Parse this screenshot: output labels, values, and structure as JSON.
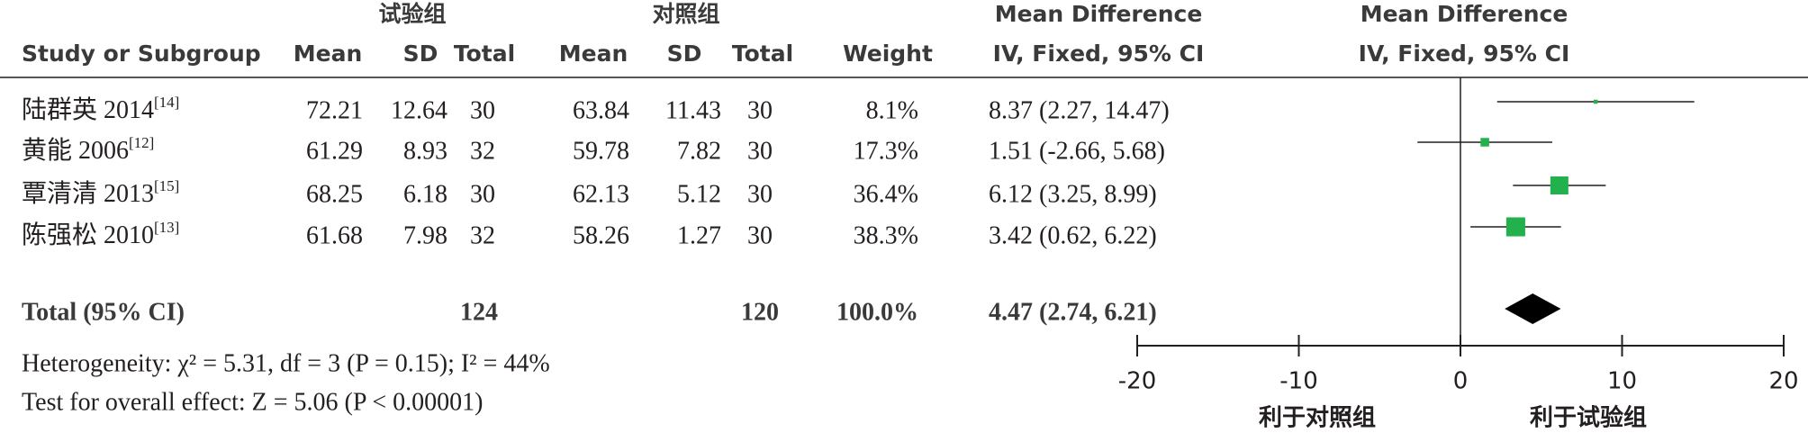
{
  "chart_data": {
    "type": "forest",
    "group_headers": [
      "试验组",
      "对照组"
    ],
    "col_headers": {
      "study": "Study or Subgroup",
      "mean": "Mean",
      "sd": "SD",
      "total": "Total",
      "weight": "Weight"
    },
    "effect_header": [
      "Mean Difference",
      "IV, Fixed, 95% CI"
    ],
    "plot_header": [
      "Mean Difference",
      "IV, Fixed, 95% CI"
    ],
    "studies": [
      {
        "name": "陆群英 2014",
        "ref": "[14]",
        "exp_mean": 72.21,
        "exp_sd": 12.64,
        "exp_total": 30,
        "ctl_mean": 63.84,
        "ctl_sd": 11.43,
        "ctl_total": 30,
        "weight": 8.1,
        "weight_label": "8.1%",
        "md": 8.37,
        "lower": 2.27,
        "upper": 14.47,
        "ci_label": "8.37 (2.27, 14.47)"
      },
      {
        "name": "黄能 2006",
        "ref": "[12]",
        "exp_mean": 61.29,
        "exp_sd": 8.93,
        "exp_total": 32,
        "ctl_mean": 59.78,
        "ctl_sd": 7.82,
        "ctl_total": 30,
        "weight": 17.3,
        "weight_label": "17.3%",
        "md": 1.51,
        "lower": -2.66,
        "upper": 5.68,
        "ci_label": "1.51 (-2.66, 5.68)"
      },
      {
        "name": "覃清清 2013",
        "ref": "[15]",
        "exp_mean": 68.25,
        "exp_sd": 6.18,
        "exp_total": 30,
        "ctl_mean": 62.13,
        "ctl_sd": 5.12,
        "ctl_total": 30,
        "weight": 36.4,
        "weight_label": "36.4%",
        "md": 6.12,
        "lower": 3.25,
        "upper": 8.99,
        "ci_label": "6.12 (3.25, 8.99)"
      },
      {
        "name": "陈强松 2010",
        "ref": "[13]",
        "exp_mean": 61.68,
        "exp_sd": 7.98,
        "exp_total": 32,
        "ctl_mean": 58.26,
        "ctl_sd": 1.27,
        "ctl_total": 30,
        "weight": 38.3,
        "weight_label": "38.3%",
        "md": 3.42,
        "lower": 0.62,
        "upper": 6.22,
        "ci_label": "3.42 (0.62, 6.22)"
      }
    ],
    "total": {
      "name": "Total (95% CI)",
      "exp_total": 124,
      "ctl_total": 120,
      "weight": 100,
      "weight_label": "100.0%",
      "md": 4.47,
      "lower": 2.74,
      "upper": 6.21,
      "ci_label": "4.47 (2.74, 6.21)"
    },
    "heterogeneity": "Heterogeneity: χ² = 5.31, df = 3 (P = 0.15); I² = 44%",
    "overall_effect": "Test for overall effect: Z = 5.06 (P < 0.00001)",
    "xlim": [
      -20,
      20
    ],
    "xticks": [
      -20,
      -10,
      0,
      10,
      20
    ],
    "favours_left": "利于对照组",
    "favours_right": "利于试验组",
    "color": "#22b14c"
  }
}
